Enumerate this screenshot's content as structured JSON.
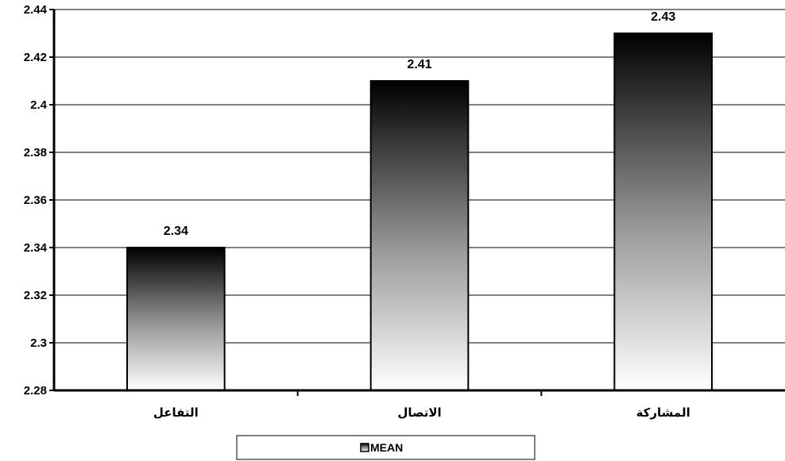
{
  "chart_data": {
    "type": "bar",
    "categories": [
      "التفاعل",
      "الاتصال",
      "المشاركة"
    ],
    "series": [
      {
        "name": "MEAN",
        "values": [
          2.34,
          2.41,
          2.43
        ]
      }
    ],
    "data_labels": [
      "2.34",
      "2.41",
      "2.43"
    ],
    "ylim": [
      2.28,
      2.44
    ],
    "yticks": [
      2.28,
      2.3,
      2.32,
      2.34,
      2.36,
      2.38,
      2.4,
      2.42,
      2.44
    ],
    "ytick_labels": [
      "2.28",
      "2.3",
      "2.32",
      "2.34",
      "2.36",
      "2.38",
      "2.4",
      "2.42",
      "2.44"
    ],
    "title": "",
    "xlabel": "",
    "ylabel": "",
    "grid": true,
    "legend": {
      "placement": "bottom-center",
      "entries": [
        "MEAN"
      ]
    },
    "colors": {
      "bar_top": "#000000",
      "bar_bottom": "#ffffff",
      "grid": "#000000",
      "axis": "#000000"
    }
  }
}
